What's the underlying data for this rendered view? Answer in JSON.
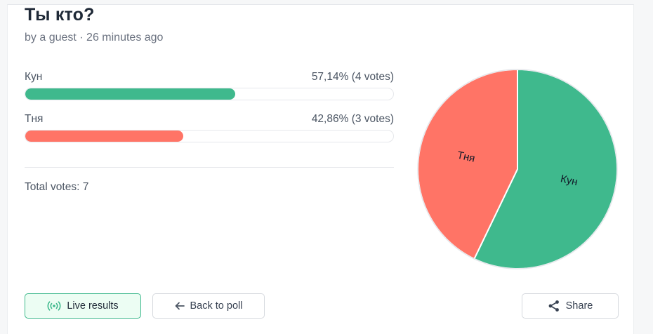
{
  "poll": {
    "title": "Ты кто?",
    "meta": "by a guest · 26 minutes ago",
    "total_votes": "Total votes: 7"
  },
  "options": [
    {
      "label": "Кун",
      "result": "57,14% (4 votes)",
      "fraction": 0.5714,
      "color": "#3fb98d"
    },
    {
      "label": "Тня",
      "result": "42,86% (3 votes)",
      "fraction": 0.4286,
      "color": "#ff7466"
    }
  ],
  "chart_data": {
    "type": "pie",
    "categories": [
      "Кун",
      "Тня"
    ],
    "values": [
      4,
      3
    ],
    "colors": [
      "#3fb98d",
      "#ff7466"
    ]
  },
  "buttons": {
    "live_results": "Live results",
    "back_to_poll": "Back to poll",
    "share": "Share"
  },
  "icons": {
    "live": "broadcast-icon",
    "back": "arrow-left-icon",
    "share": "share-icon"
  }
}
